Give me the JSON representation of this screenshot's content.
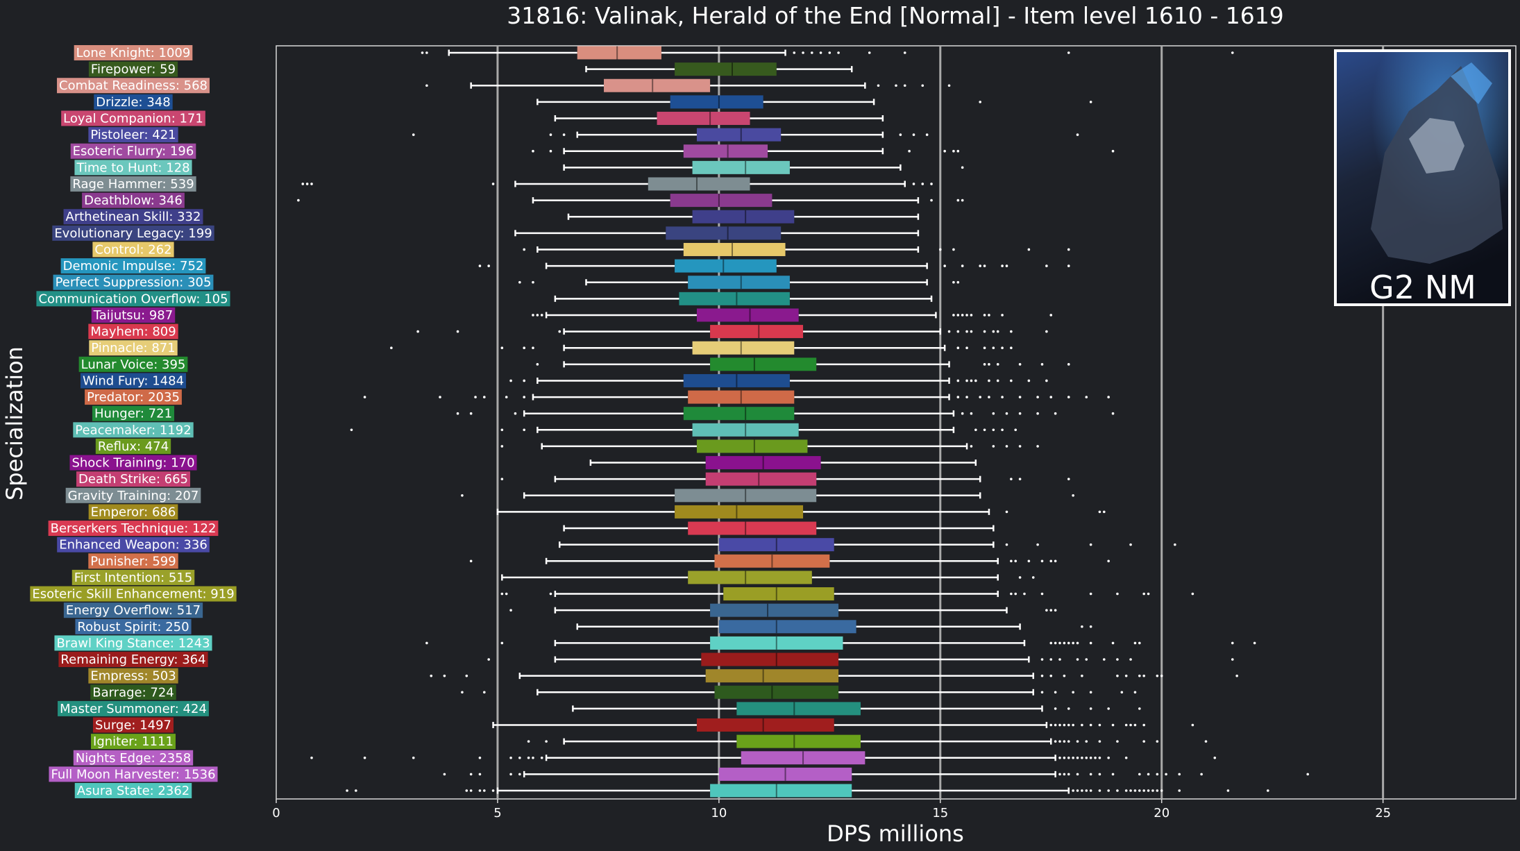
{
  "chart_data": {
    "type": "box",
    "title": "31816: Valinak, Herald of the End [Normal] - Item level 1610 - 1619",
    "xlabel": "DPS millions",
    "ylabel": "Specialization",
    "xlim": [
      0,
      28
    ],
    "xticks": [
      0,
      5,
      10,
      15,
      20,
      25
    ],
    "grid": "vertical lines at 5, 10, 15, 20, 25",
    "badge_text": "G2 NM",
    "series": [
      {
        "label": "Lone Knight: 1009",
        "color": "#d98e7e",
        "whislo": 3.9,
        "q1": 6.8,
        "med": 7.7,
        "q3": 8.7,
        "whishi": 11.5,
        "fliers": [
          3.3,
          3.4,
          11.7,
          11.9,
          12.1,
          12.3,
          12.5,
          12.7,
          13.4,
          14.2,
          17.9,
          21.6
        ]
      },
      {
        "label": "Firepower: 59",
        "color": "#375a1e",
        "whislo": 7.0,
        "q1": 9.0,
        "med": 10.3,
        "q3": 11.3,
        "whishi": 13.0,
        "fliers": []
      },
      {
        "label": "Combat Readiness: 568",
        "color": "#d9928a",
        "whislo": 4.4,
        "q1": 7.4,
        "med": 8.5,
        "q3": 9.8,
        "whishi": 13.3,
        "fliers": [
          3.4,
          13.6,
          14.0,
          14.2,
          14.6,
          15.2
        ]
      },
      {
        "label": "Drizzle: 348",
        "color": "#1e4f94",
        "whislo": 5.9,
        "q1": 8.9,
        "med": 10.0,
        "q3": 11.0,
        "whishi": 13.5,
        "fliers": [
          15.9,
          18.4
        ]
      },
      {
        "label": "Loyal Companion: 171",
        "color": "#c94670",
        "whislo": 6.3,
        "q1": 8.6,
        "med": 9.8,
        "q3": 10.7,
        "whishi": 13.7,
        "fliers": []
      },
      {
        "label": "Pistoleer: 421",
        "color": "#4a4aa0",
        "whislo": 6.8,
        "q1": 9.5,
        "med": 10.5,
        "q3": 11.4,
        "whishi": 13.7,
        "fliers": [
          3.1,
          6.2,
          6.5,
          14.1,
          14.4,
          14.7,
          18.1
        ]
      },
      {
        "label": "Esoteric Flurry: 196",
        "color": "#a04aa0",
        "whislo": 6.5,
        "q1": 9.2,
        "med": 10.2,
        "q3": 11.1,
        "whishi": 13.7,
        "fliers": [
          5.8,
          6.2,
          14.3,
          15.1,
          15.3,
          15.4,
          18.9
        ]
      },
      {
        "label": "Time to Hunt: 128",
        "color": "#6bc7bd",
        "whislo": 6.5,
        "q1": 9.4,
        "med": 10.6,
        "q3": 11.6,
        "whishi": 14.1,
        "fliers": [
          15.5
        ]
      },
      {
        "label": "Rage Hammer: 539",
        "color": "#7e8d92",
        "whislo": 5.4,
        "q1": 8.4,
        "med": 9.5,
        "q3": 10.7,
        "whishi": 14.2,
        "fliers": [
          0.6,
          0.7,
          0.8,
          4.9,
          14.4,
          14.6,
          14.8
        ]
      },
      {
        "label": "Deathblow: 346",
        "color": "#8a3a8e",
        "whislo": 5.8,
        "q1": 8.9,
        "med": 10.0,
        "q3": 11.2,
        "whishi": 14.5,
        "fliers": [
          0.5,
          14.8,
          15.4,
          15.5
        ]
      },
      {
        "label": "Arthetinean Skill: 332",
        "color": "#3f3f8a",
        "whislo": 6.6,
        "q1": 9.4,
        "med": 10.6,
        "q3": 11.7,
        "whishi": 14.5,
        "fliers": []
      },
      {
        "label": "Evolutionary Legacy: 199",
        "color": "#3a4480",
        "whislo": 5.4,
        "q1": 8.8,
        "med": 10.2,
        "q3": 11.4,
        "whishi": 14.5,
        "fliers": []
      },
      {
        "label": "Control: 262",
        "color": "#e6c86a",
        "whislo": 5.9,
        "q1": 9.2,
        "med": 10.3,
        "q3": 11.5,
        "whishi": 14.5,
        "fliers": [
          5.6,
          15.0,
          15.3,
          17.0,
          17.9
        ]
      },
      {
        "label": "Demonic Impulse: 752",
        "color": "#2596be",
        "whislo": 6.1,
        "q1": 9.0,
        "med": 10.1,
        "q3": 11.3,
        "whishi": 14.7,
        "fliers": [
          4.6,
          4.8,
          15.1,
          15.5,
          15.9,
          16.0,
          16.4,
          16.5,
          17.4,
          17.9
        ]
      },
      {
        "label": "Perfect Suppression: 305",
        "color": "#2a8fb8",
        "whislo": 7.0,
        "q1": 9.3,
        "med": 10.5,
        "q3": 11.6,
        "whishi": 14.7,
        "fliers": [
          5.5,
          5.8,
          15.3,
          15.4
        ]
      },
      {
        "label": "Communication Overflow: 105",
        "color": "#229086",
        "whislo": 6.3,
        "q1": 9.1,
        "med": 10.4,
        "q3": 11.6,
        "whishi": 14.8,
        "fliers": []
      },
      {
        "label": "Taijutsu: 987",
        "color": "#8a1a8e",
        "whislo": 6.1,
        "q1": 9.5,
        "med": 10.7,
        "q3": 11.8,
        "whishi": 14.9,
        "fliers": [
          5.8,
          5.9,
          6.0,
          15.3,
          15.4,
          15.5,
          15.6,
          15.7,
          16.0,
          16.1,
          16.4,
          17.5
        ]
      },
      {
        "label": "Mayhem: 809",
        "color": "#d9394e",
        "whislo": 6.5,
        "q1": 9.8,
        "med": 10.9,
        "q3": 11.9,
        "whishi": 15.0,
        "fliers": [
          3.2,
          4.1,
          6.4,
          15.2,
          15.4,
          15.6,
          15.7,
          16.0,
          16.2,
          16.3,
          16.6,
          17.4
        ]
      },
      {
        "label": "Pinnacle: 871",
        "color": "#e6cd78",
        "whislo": 6.5,
        "q1": 9.4,
        "med": 10.5,
        "q3": 11.7,
        "whishi": 15.1,
        "fliers": [
          2.6,
          5.1,
          5.6,
          5.8,
          15.4,
          15.6,
          16.0,
          16.2,
          16.4,
          16.6
        ]
      },
      {
        "label": "Lunar Voice: 395",
        "color": "#238a2e",
        "whislo": 6.5,
        "q1": 9.8,
        "med": 10.8,
        "q3": 12.2,
        "whishi": 15.2,
        "fliers": [
          5.9,
          16.0,
          16.1,
          16.3,
          16.8,
          17.3,
          17.9
        ]
      },
      {
        "label": "Wind Fury: 1484",
        "color": "#1e4d90",
        "whislo": 5.9,
        "q1": 9.2,
        "med": 10.4,
        "q3": 11.6,
        "whishi": 15.2,
        "fliers": [
          5.3,
          5.6,
          15.4,
          15.6,
          15.7,
          15.8,
          16.1,
          16.3,
          16.6,
          17.0,
          17.4
        ]
      },
      {
        "label": "Predator: 2035",
        "color": "#cf6a48",
        "whislo": 5.8,
        "q1": 9.3,
        "med": 10.5,
        "q3": 11.7,
        "whishi": 15.2,
        "fliers": [
          2.0,
          3.7,
          4.5,
          4.7,
          5.2,
          5.6,
          15.4,
          15.6,
          15.9,
          16.1,
          16.4,
          16.8,
          17.2,
          17.5,
          17.9,
          18.3,
          18.8
        ]
      },
      {
        "label": "Hunger: 721",
        "color": "#1f8a3a",
        "whislo": 5.6,
        "q1": 9.2,
        "med": 10.6,
        "q3": 11.7,
        "whishi": 15.3,
        "fliers": [
          4.1,
          4.4,
          5.4,
          15.5,
          15.7,
          16.2,
          16.5,
          16.8,
          17.2,
          17.6,
          18.9
        ]
      },
      {
        "label": "Peacemaker: 1192",
        "color": "#5fbfb5",
        "whislo": 5.9,
        "q1": 9.4,
        "med": 10.6,
        "q3": 11.8,
        "whishi": 15.3,
        "fliers": [
          1.7,
          5.1,
          5.6,
          15.8,
          16.0,
          16.2,
          16.4,
          16.7
        ]
      },
      {
        "label": "Reflux: 474",
        "color": "#6a9a1e",
        "whislo": 6.0,
        "q1": 9.5,
        "med": 10.8,
        "q3": 12.0,
        "whishi": 15.6,
        "fliers": [
          5.1,
          15.7,
          16.2,
          16.5,
          16.8,
          17.2
        ]
      },
      {
        "label": "Shock Training: 170",
        "color": "#8a128e",
        "whislo": 7.1,
        "q1": 9.7,
        "med": 11.0,
        "q3": 12.3,
        "whishi": 15.8,
        "fliers": []
      },
      {
        "label": "Death Strike: 665",
        "color": "#c43e72",
        "whislo": 6.3,
        "q1": 9.7,
        "med": 10.9,
        "q3": 12.2,
        "whishi": 15.9,
        "fliers": [
          5.1,
          16.6,
          16.8,
          17.9
        ]
      },
      {
        "label": "Gravity Training: 207",
        "color": "#7d8d93",
        "whislo": 5.6,
        "q1": 9.0,
        "med": 10.6,
        "q3": 12.2,
        "whishi": 15.9,
        "fliers": [
          4.2,
          18.0
        ]
      },
      {
        "label": "Emperor: 686",
        "color": "#a08a1e",
        "whislo": 5.0,
        "q1": 9.0,
        "med": 10.4,
        "q3": 11.9,
        "whishi": 16.1,
        "fliers": [
          16.5,
          18.6,
          18.7
        ]
      },
      {
        "label": "Berserkers Technique: 122",
        "color": "#d93a52",
        "whislo": 6.5,
        "q1": 9.3,
        "med": 10.6,
        "q3": 12.2,
        "whishi": 16.2,
        "fliers": []
      },
      {
        "label": "Enhanced Weapon: 336",
        "color": "#4a4aa6",
        "whislo": 6.4,
        "q1": 10.0,
        "med": 11.3,
        "q3": 12.6,
        "whishi": 16.2,
        "fliers": [
          16.5,
          17.2,
          18.4,
          19.3,
          20.3
        ]
      },
      {
        "label": "Punisher: 599",
        "color": "#d2704a",
        "whislo": 6.1,
        "q1": 9.9,
        "med": 11.2,
        "q3": 12.5,
        "whishi": 16.3,
        "fliers": [
          4.4,
          16.6,
          16.7,
          17.0,
          17.3,
          17.5,
          17.6,
          18.8
        ]
      },
      {
        "label": "First Intention: 515",
        "color": "#9aa12a",
        "whislo": 5.1,
        "q1": 9.3,
        "med": 10.6,
        "q3": 12.1,
        "whishi": 16.3,
        "fliers": [
          16.8,
          17.1
        ]
      },
      {
        "label": "Esoteric Skill Enhancement: 919",
        "color": "#9a9e25",
        "whislo": 6.3,
        "q1": 10.1,
        "med": 11.3,
        "q3": 12.6,
        "whishi": 16.3,
        "fliers": [
          5.1,
          5.2,
          6.2,
          16.6,
          16.7,
          16.9,
          17.3,
          18.4,
          19.0,
          19.6,
          19.7,
          20.7
        ]
      },
      {
        "label": "Energy Overflow: 517",
        "color": "#3a6690",
        "whislo": 6.3,
        "q1": 9.8,
        "med": 11.1,
        "q3": 12.7,
        "whishi": 16.5,
        "fliers": [
          5.3,
          17.4,
          17.5,
          17.6
        ]
      },
      {
        "label": "Robust Spirit: 250",
        "color": "#3a6aa0",
        "whislo": 6.8,
        "q1": 10.0,
        "med": 11.3,
        "q3": 13.1,
        "whishi": 16.8,
        "fliers": [
          18.2,
          18.4
        ]
      },
      {
        "label": "Brawl King Stance: 1243",
        "color": "#5fd1c5",
        "whislo": 6.3,
        "q1": 9.8,
        "med": 11.3,
        "q3": 12.8,
        "whishi": 16.9,
        "fliers": [
          3.4,
          5.1,
          17.5,
          17.6,
          17.7,
          17.8,
          17.9,
          18.0,
          18.1,
          18.4,
          18.9,
          19.4,
          19.5,
          21.6,
          22.1
        ]
      },
      {
        "label": "Remaining Energy: 364",
        "color": "#9a1c1c",
        "whislo": 6.3,
        "q1": 9.6,
        "med": 11.3,
        "q3": 12.7,
        "whishi": 17.0,
        "fliers": [
          4.8,
          17.3,
          17.5,
          17.7,
          18.1,
          18.3,
          18.7,
          19.0,
          19.3,
          21.6
        ]
      },
      {
        "label": "Empress: 503",
        "color": "#a0862a",
        "whislo": 5.5,
        "q1": 9.7,
        "med": 11.0,
        "q3": 12.7,
        "whishi": 17.1,
        "fliers": [
          3.5,
          3.8,
          4.3,
          17.3,
          17.5,
          17.8,
          18.2,
          19.0,
          19.2,
          19.5,
          19.6,
          19.9,
          20.0,
          21.7
        ]
      },
      {
        "label": "Barrage: 724",
        "color": "#2e5a1e",
        "whislo": 5.9,
        "q1": 9.9,
        "med": 11.2,
        "q3": 12.7,
        "whishi": 17.1,
        "fliers": [
          4.2,
          4.7,
          17.3,
          17.6,
          18.0,
          18.4,
          19.1,
          19.4
        ]
      },
      {
        "label": "Master Summoner: 424",
        "color": "#24907f",
        "whislo": 6.7,
        "q1": 10.4,
        "med": 11.7,
        "q3": 13.2,
        "whishi": 17.3,
        "fliers": [
          17.6,
          17.9,
          18.4,
          18.8,
          19.5
        ]
      },
      {
        "label": "Surge: 1497",
        "color": "#a01e1e",
        "whislo": 4.9,
        "q1": 9.5,
        "med": 11.0,
        "q3": 12.6,
        "whishi": 17.4,
        "fliers": [
          17.5,
          17.6,
          17.7,
          17.8,
          17.9,
          18.0,
          18.2,
          18.4,
          18.6,
          18.9,
          19.2,
          19.3,
          19.4,
          19.6,
          20.7
        ]
      },
      {
        "label": "Igniter: 1111",
        "color": "#6aa21a",
        "whislo": 6.5,
        "q1": 10.4,
        "med": 11.7,
        "q3": 13.2,
        "whishi": 17.5,
        "fliers": [
          5.7,
          6.1,
          17.6,
          17.7,
          17.8,
          17.9,
          18.1,
          18.3,
          18.6,
          19.0,
          19.6,
          19.9,
          21.0
        ]
      },
      {
        "label": "Nights Edge: 2358",
        "color": "#b55fc4",
        "whislo": 6.1,
        "q1": 10.5,
        "med": 11.9,
        "q3": 13.3,
        "whishi": 17.6,
        "fliers": [
          0.8,
          2.0,
          3.1,
          4.6,
          5.3,
          5.5,
          5.7,
          5.8,
          6.0,
          17.7,
          17.8,
          17.9,
          18.0,
          18.1,
          18.2,
          18.3,
          18.4,
          18.5,
          18.6,
          18.8,
          19.2,
          21.2
        ]
      },
      {
        "label": "Full Moon Harvester: 1536",
        "color": "#b45fc6",
        "whislo": 5.6,
        "q1": 10.0,
        "med": 11.5,
        "q3": 13.0,
        "whishi": 17.6,
        "fliers": [
          3.8,
          4.4,
          4.6,
          5.3,
          5.5,
          17.7,
          17.8,
          17.9,
          18.1,
          18.4,
          18.6,
          18.9,
          19.5,
          19.7,
          19.9,
          20.1,
          20.4,
          20.9,
          23.3
        ]
      },
      {
        "label": "Asura State: 2362",
        "color": "#4fc6bc",
        "whislo": 5.0,
        "q1": 9.8,
        "med": 11.3,
        "q3": 13.0,
        "whishi": 17.9,
        "fliers": [
          1.6,
          1.8,
          4.3,
          4.4,
          4.6,
          4.7,
          4.9,
          18.0,
          18.1,
          18.2,
          18.3,
          18.4,
          18.6,
          18.8,
          19.0,
          19.2,
          19.3,
          19.4,
          19.5,
          19.6,
          19.7,
          19.8,
          19.9,
          20.0,
          20.4,
          21.5,
          22.4
        ]
      }
    ]
  }
}
